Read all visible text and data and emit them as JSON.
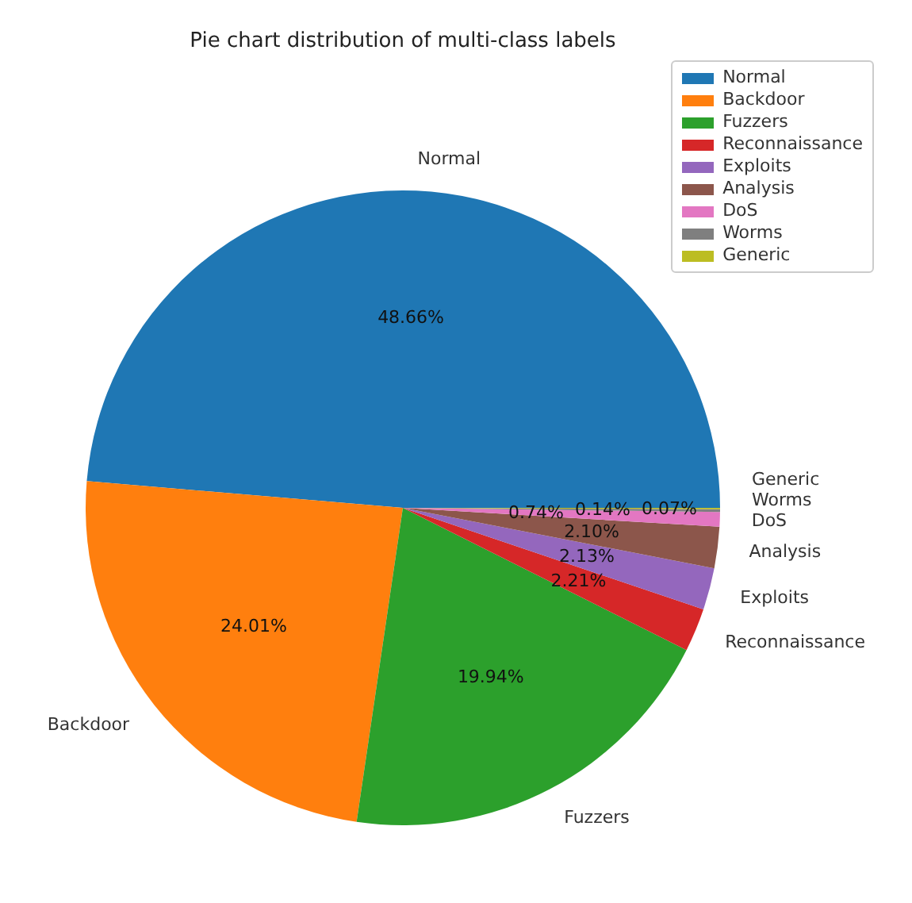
{
  "chart_data": {
    "type": "pie",
    "title": "Pie chart distribution of multi-class labels",
    "categories": [
      "Normal",
      "Backdoor",
      "Fuzzers",
      "Reconnaissance",
      "Exploits",
      "Analysis",
      "DoS",
      "Worms",
      "Generic"
    ],
    "values": [
      48.66,
      24.01,
      19.94,
      2.21,
      2.13,
      2.1,
      0.74,
      0.14,
      0.07
    ],
    "value_labels": [
      "48.66%",
      "24.01%",
      "19.94%",
      "2.21%",
      "2.13%",
      "2.10%",
      "0.74%",
      "0.14%",
      "0.07%"
    ],
    "colors": [
      "#1f77b4",
      "#ff7f0e",
      "#2ca02c",
      "#d62728",
      "#9467bd",
      "#8c564b",
      "#e377c2",
      "#7f7f7f",
      "#bcbd22"
    ],
    "legend": "top right"
  }
}
